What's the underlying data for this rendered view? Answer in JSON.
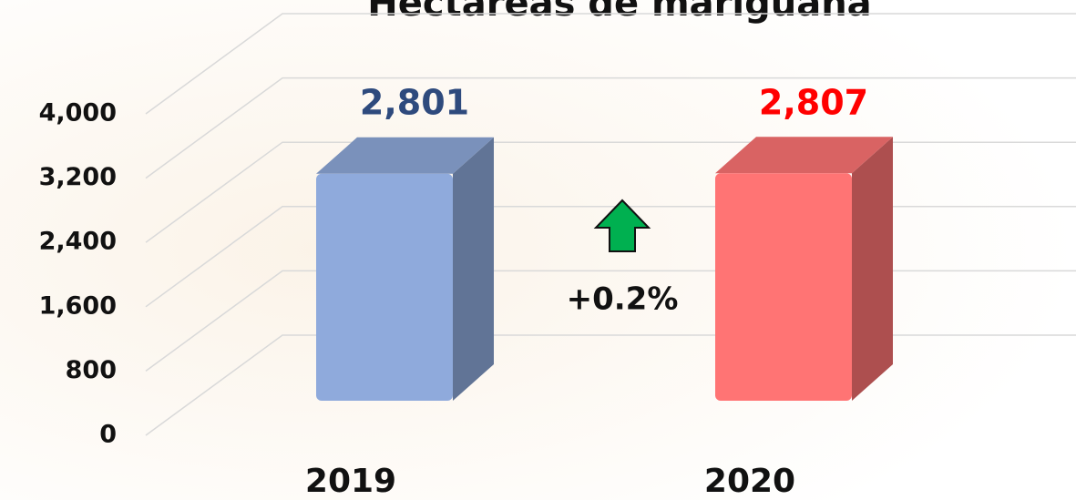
{
  "chart_data": {
    "type": "bar3d",
    "title": "Hectáreas de mariguana",
    "categories": [
      "2019",
      "2020"
    ],
    "values": [
      2801,
      2807
    ],
    "value_labels": [
      "2,801",
      "2,807"
    ],
    "colors": [
      "#8faadc",
      "#ff7474"
    ],
    "value_label_colors": [
      "#2e4a7d",
      "#ff0000"
    ],
    "annotation": "+0.2%",
    "ylim": [
      0,
      4000
    ],
    "yticks": [
      0,
      {
        "value": 800,
        "label": "800"
      },
      {
        "value": 1600,
        "label": "1,600"
      },
      {
        "value": 2400,
        "label": "2,400"
      },
      {
        "value": 3200,
        "label": "3,200"
      },
      {
        "value": 4000,
        "label": "4,000"
      }
    ],
    "grid": true
  }
}
